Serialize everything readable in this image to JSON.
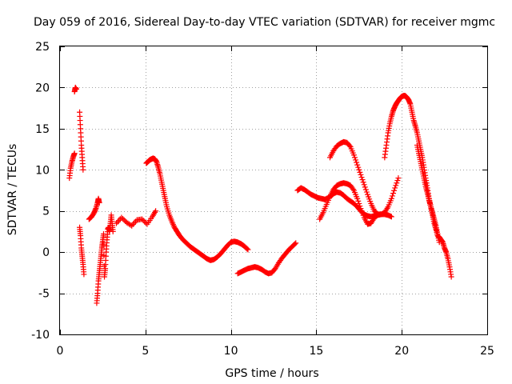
{
  "chart_data": {
    "type": "scatter",
    "title": "Day 059 of 2016, Sidereal Day-to-day VTEC variation (SDTVAR) for receiver mgmc",
    "xlabel": "GPS time / hours",
    "ylabel": "SDTVAR / TECUs",
    "xlim": [
      0,
      25
    ],
    "ylim": [
      -10,
      25
    ],
    "xticks": [
      0,
      5,
      10,
      15,
      20,
      25
    ],
    "yticks": [
      -10,
      -5,
      0,
      5,
      10,
      15,
      20,
      25
    ],
    "grid": true,
    "marker": "+",
    "color": "#ff0000",
    "series": [
      {
        "name": "seg-a",
        "x": [
          0.55,
          0.62,
          0.7,
          0.78,
          0.85
        ],
        "y": [
          9.0,
          10.2,
          11.0,
          11.6,
          12.0
        ]
      },
      {
        "name": "seg-b",
        "x": [
          0.85,
          0.9,
          0.95
        ],
        "y": [
          19.5,
          20.0,
          19.8
        ]
      },
      {
        "name": "seg-c",
        "x": [
          1.15,
          1.2,
          1.25,
          1.3,
          1.35
        ],
        "y": [
          17.0,
          15.0,
          13.0,
          11.5,
          10.0
        ]
      },
      {
        "name": "seg-d",
        "x": [
          1.15,
          1.2,
          1.25,
          1.3,
          1.35,
          1.4
        ],
        "y": [
          3.0,
          2.0,
          0.5,
          -0.5,
          -1.5,
          -2.7
        ]
      },
      {
        "name": "seg-e",
        "x": [
          1.7,
          1.85,
          2.0,
          2.1,
          2.2,
          2.25,
          2.3
        ],
        "y": [
          4.0,
          4.3,
          4.8,
          5.3,
          6.0,
          6.5,
          6.0
        ]
      },
      {
        "name": "seg-f",
        "x": [
          2.15,
          2.2,
          2.25,
          2.3,
          2.35,
          2.4,
          2.45,
          2.5,
          2.55,
          2.6,
          2.65,
          2.7,
          2.75,
          2.8,
          2.85,
          2.9,
          2.95,
          3.0,
          3.05,
          3.1
        ],
        "y": [
          -6.2,
          -5.0,
          -3.5,
          -2.5,
          -1.5,
          -0.5,
          0.5,
          1.3,
          2.2,
          -3.0,
          -2.0,
          0.0,
          1.5,
          2.8,
          3.0,
          2.5,
          3.5,
          4.5,
          3.5,
          2.5
        ]
      },
      {
        "name": "seg-g",
        "x": [
          3.3,
          3.6,
          3.9,
          4.2,
          4.5,
          4.8,
          5.1,
          5.4,
          5.6
        ],
        "y": [
          3.5,
          4.2,
          3.6,
          3.2,
          3.9,
          4.0,
          3.4,
          4.3,
          5.0
        ]
      },
      {
        "name": "seg-h",
        "x": [
          5.05,
          5.15,
          5.25,
          5.35,
          5.45,
          5.55,
          5.65,
          5.75,
          5.85,
          5.95,
          6.05,
          6.15,
          6.25,
          6.4,
          6.55,
          6.7,
          6.85,
          7.0,
          7.2,
          7.4,
          7.6,
          7.8,
          8.0,
          8.2,
          8.4,
          8.6,
          8.8,
          9.0,
          9.2,
          9.4,
          9.6,
          9.8,
          10.0,
          10.2,
          10.4,
          10.6,
          10.8,
          11.0
        ],
        "y": [
          10.8,
          11.0,
          11.2,
          11.3,
          11.4,
          11.3,
          11.0,
          10.3,
          9.5,
          8.5,
          7.5,
          6.5,
          5.5,
          4.5,
          3.7,
          3.0,
          2.5,
          2.0,
          1.5,
          1.1,
          0.7,
          0.4,
          0.1,
          -0.2,
          -0.5,
          -0.8,
          -1.0,
          -0.9,
          -0.6,
          -0.2,
          0.3,
          0.8,
          1.2,
          1.3,
          1.2,
          1.0,
          0.7,
          0.3
        ]
      },
      {
        "name": "seg-i",
        "x": [
          10.4,
          10.6,
          10.8,
          11.0,
          11.2,
          11.4,
          11.6,
          11.8,
          12.0,
          12.2,
          12.4,
          12.6,
          12.8,
          13.0,
          13.2,
          13.4,
          13.6,
          13.8
        ],
        "y": [
          -2.6,
          -2.4,
          -2.2,
          -2.0,
          -1.9,
          -1.8,
          -1.9,
          -2.1,
          -2.4,
          -2.6,
          -2.5,
          -2.0,
          -1.3,
          -0.7,
          -0.2,
          0.3,
          0.7,
          1.1
        ]
      },
      {
        "name": "seg-j",
        "x": [
          13.9,
          14.1,
          14.3,
          14.5,
          14.7,
          14.9,
          15.1,
          15.3,
          15.5,
          15.7,
          15.9,
          16.0,
          16.2,
          16.4,
          16.6,
          16.8,
          17.0,
          17.2,
          17.4,
          17.6,
          17.8,
          18.0,
          18.2,
          18.4,
          18.6
        ],
        "y": [
          7.5,
          7.8,
          7.6,
          7.3,
          7.0,
          6.8,
          6.6,
          6.5,
          6.4,
          6.6,
          6.9,
          7.1,
          7.3,
          7.2,
          6.9,
          6.5,
          6.2,
          5.9,
          5.5,
          5.0,
          4.6,
          4.4,
          4.3,
          4.4,
          4.6
        ]
      },
      {
        "name": "seg-k",
        "x": [
          15.2,
          15.4,
          15.6,
          15.8,
          16.0,
          16.2,
          16.4,
          16.6,
          16.8,
          17.0,
          17.2,
          17.4,
          17.6,
          17.8,
          18.0,
          18.2,
          18.4,
          18.6,
          18.8,
          19.0,
          19.2,
          19.4,
          19.6,
          19.8
        ],
        "y": [
          4.0,
          4.8,
          5.8,
          6.8,
          7.6,
          8.1,
          8.3,
          8.4,
          8.3,
          8.1,
          7.5,
          6.5,
          5.3,
          4.2,
          3.4,
          3.5,
          4.2,
          4.5,
          4.6,
          4.8,
          5.5,
          6.5,
          7.8,
          9.0
        ]
      },
      {
        "name": "seg-l",
        "x": [
          15.8,
          16.0,
          16.2,
          16.4,
          16.6,
          16.8,
          17.0,
          17.2,
          17.4,
          17.6,
          17.8,
          18.0,
          18.2,
          18.4,
          18.6,
          18.8,
          19.0,
          19.2,
          19.4
        ],
        "y": [
          11.5,
          12.3,
          12.9,
          13.2,
          13.4,
          13.3,
          12.8,
          11.8,
          10.6,
          9.4,
          8.2,
          7.0,
          5.9,
          5.0,
          4.6,
          4.6,
          4.6,
          4.5,
          4.3
        ]
      },
      {
        "name": "seg-m",
        "x": [
          19.0,
          19.1,
          19.2,
          19.3,
          19.4,
          19.5,
          19.6,
          19.7,
          19.8,
          19.9,
          20.0,
          20.1,
          20.2,
          20.3,
          20.4,
          20.5,
          20.6,
          20.7,
          20.8,
          20.9,
          21.0,
          21.1,
          21.2,
          21.3,
          21.4,
          21.5,
          21.6,
          21.7,
          21.8,
          21.9,
          22.0,
          22.1,
          22.2,
          22.3,
          22.4,
          22.5,
          22.6,
          22.7,
          22.8,
          22.9
        ],
        "y": [
          11.5,
          13.0,
          14.5,
          15.6,
          16.5,
          17.2,
          17.7,
          18.1,
          18.4,
          18.7,
          18.9,
          19.0,
          19.0,
          18.8,
          18.5,
          18.0,
          17.0,
          16.0,
          15.3,
          14.5,
          13.5,
          12.5,
          11.5,
          10.3,
          9.0,
          7.8,
          6.5,
          5.5,
          4.5,
          3.5,
          2.8,
          2.0,
          1.8,
          1.5,
          1.2,
          0.5,
          0.0,
          -0.8,
          -1.8,
          -3.0
        ]
      },
      {
        "name": "seg-n",
        "x": [
          20.9,
          21.0,
          21.1,
          21.2,
          21.3,
          21.4,
          21.5,
          21.6,
          21.7,
          21.8,
          21.9,
          22.0,
          22.1,
          22.2
        ],
        "y": [
          13.0,
          12.0,
          11.0,
          10.0,
          9.0,
          8.0,
          7.2,
          6.3,
          5.5,
          4.8,
          4.0,
          3.2,
          2.2,
          1.2
        ]
      }
    ]
  }
}
